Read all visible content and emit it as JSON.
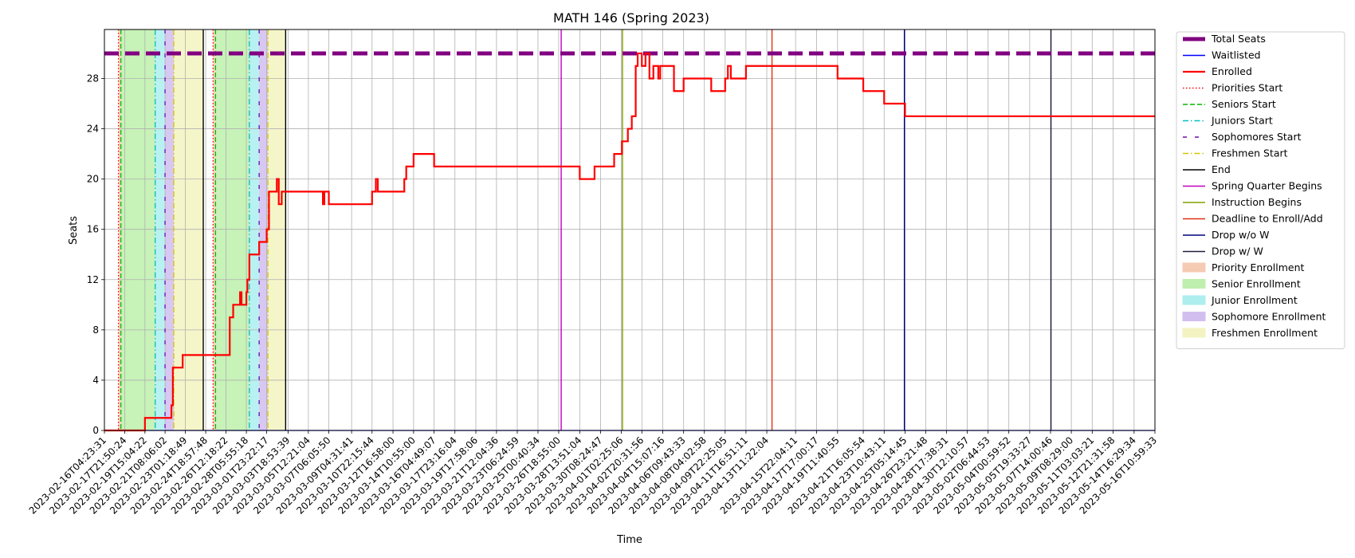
{
  "chart_data": {
    "type": "line",
    "title": "MATH 146 (Spring 2023)",
    "xlabel": "Time",
    "ylabel": "Seats",
    "ylim": [
      0,
      30
    ],
    "yticks": [
      0,
      4,
      8,
      12,
      16,
      20,
      24,
      28
    ],
    "grid": true,
    "legend_position": "outside-right",
    "x_start": "2023-02-16T04:23:31",
    "x_end": "2023-05-16T10:59:33",
    "x_tick_labels": [
      "2023-02-16T04:23:31",
      "2023-02-17T21:50:24",
      "2023-02-19T15:04:22",
      "2023-02-21T08:06:02",
      "2023-02-23T01:18:49",
      "2023-02-24T18:57:48",
      "2023-02-26T12:18:22",
      "2023-02-28T05:55:18",
      "2023-03-01T23:22:17",
      "2023-03-03T18:53:39",
      "2023-03-05T12:21:04",
      "2023-03-07T06:05:50",
      "2023-03-09T04:31:41",
      "2023-03-10T22:15:44",
      "2023-03-12T16:58:00",
      "2023-03-14T10:55:00",
      "2023-03-16T04:49:07",
      "2023-03-17T23:16:04",
      "2023-03-19T17:58:06",
      "2023-03-21T12:04:36",
      "2023-03-23T06:24:59",
      "2023-03-25T00:40:34",
      "2023-03-26T18:55:00",
      "2023-03-28T13:51:04",
      "2023-03-30T08:24:47",
      "2023-04-01T02:25:06",
      "2023-04-02T20:31:56",
      "2023-04-04T15:07:16",
      "2023-04-06T09:43:33",
      "2023-04-08T04:02:58",
      "2023-04-09T22:25:05",
      "2023-04-11T16:51:11",
      "2023-04-13T11:22:04",
      "2023-04-15T22:04:11",
      "2023-04-17T17:00:17",
      "2023-04-19T11:40:55",
      "2023-04-21T16:05:54",
      "2023-04-23T10:43:11",
      "2023-04-25T05:14:45",
      "2023-04-26T23:21:48",
      "2023-04-28T17:38:31",
      "2023-04-30T12:10:57",
      "2023-05-02T06:44:53",
      "2023-05-04T00:59:52",
      "2023-05-05T19:33:27",
      "2023-05-07T14:00:46",
      "2023-05-09T08:29:00",
      "2023-05-11T03:03:21",
      "2023-05-12T21:31:58",
      "2023-05-14T16:29:34",
      "2023-05-16T10:59:33"
    ],
    "series": [
      {
        "name": "Total Seats",
        "color": "#800080",
        "style": "dashed",
        "points": [
          [
            "2023-02-16T04:23:31",
            30
          ],
          [
            "2023-05-16T10:59:33",
            30
          ]
        ]
      },
      {
        "name": "Waitlisted",
        "color": "#0000ff",
        "style": "solid",
        "points": [
          [
            "2023-02-16T04:23:31",
            0
          ],
          [
            "2023-05-16T10:59:33",
            0
          ]
        ]
      },
      {
        "name": "Enrolled",
        "color": "#ff0000",
        "style": "step",
        "points": [
          [
            "2023-02-16T04:23:31",
            0
          ],
          [
            "2023-02-19T15:04:22",
            1
          ],
          [
            "2023-02-21T08:06:02",
            1
          ],
          [
            "2023-02-21T21:00:00",
            2
          ],
          [
            "2023-02-22T00:00:00",
            5
          ],
          [
            "2023-02-22T20:00:00",
            6
          ],
          [
            "2023-02-26T12:18:22",
            6
          ],
          [
            "2023-02-26T20:00:00",
            9
          ],
          [
            "2023-02-27T03:00:00",
            10
          ],
          [
            "2023-02-27T17:00:00",
            11
          ],
          [
            "2023-02-27T20:00:00",
            10
          ],
          [
            "2023-02-28T05:55:18",
            11
          ],
          [
            "2023-02-28T08:00:00",
            12
          ],
          [
            "2023-02-28T12:00:00",
            14
          ],
          [
            "2023-03-01T08:00:00",
            15
          ],
          [
            "2023-03-01T23:22:17",
            16
          ],
          [
            "2023-03-02T04:00:00",
            19
          ],
          [
            "2023-03-02T20:00:00",
            20
          ],
          [
            "2023-03-03T00:00:00",
            18
          ],
          [
            "2023-03-03T06:00:00",
            19
          ],
          [
            "2023-03-06T18:00:00",
            18
          ],
          [
            "2023-03-06T21:00:00",
            19
          ],
          [
            "2023-03-07T06:05:50",
            18
          ],
          [
            "2023-03-10T22:15:44",
            19
          ],
          [
            "2023-03-11T06:00:00",
            20
          ],
          [
            "2023-03-11T10:00:00",
            19
          ],
          [
            "2023-03-13T16:00:00",
            20
          ],
          [
            "2023-03-13T20:00:00",
            21
          ],
          [
            "2023-03-14T10:55:00",
            22
          ],
          [
            "2023-03-16T04:49:07",
            21
          ],
          [
            "2023-03-28T13:51:04",
            20
          ],
          [
            "2023-03-29T20:00:00",
            21
          ],
          [
            "2023-03-31T12:00:00",
            22
          ],
          [
            "2023-04-01T04:00:00",
            23
          ],
          [
            "2023-04-01T16:00:00",
            24
          ],
          [
            "2023-04-02T00:00:00",
            25
          ],
          [
            "2023-04-02T08:00:00",
            29
          ],
          [
            "2023-04-02T12:00:00",
            30
          ],
          [
            "2023-04-02T20:31:56",
            29
          ],
          [
            "2023-04-03T04:00:00",
            30
          ],
          [
            "2023-04-03T12:00:00",
            28
          ],
          [
            "2023-04-03T20:00:00",
            29
          ],
          [
            "2023-04-04T06:00:00",
            28
          ],
          [
            "2023-04-04T10:00:00",
            29
          ],
          [
            "2023-04-05T14:00:00",
            27
          ],
          [
            "2023-04-06T09:43:33",
            28
          ],
          [
            "2023-04-08T18:00:00",
            27
          ],
          [
            "2023-04-09T22:25:05",
            28
          ],
          [
            "2023-04-10T04:00:00",
            29
          ],
          [
            "2023-04-10T10:00:00",
            28
          ],
          [
            "2023-04-11T16:51:11",
            29
          ],
          [
            "2023-04-19T11:40:55",
            28
          ],
          [
            "2023-04-21T16:05:54",
            27
          ],
          [
            "2023-04-23T10:43:11",
            26
          ],
          [
            "2023-04-25T05:14:45",
            25
          ],
          [
            "2023-05-16T10:59:33",
            25
          ]
        ]
      }
    ],
    "vertical_markers": [
      {
        "name": "Priorities Start",
        "color": "#ff0000",
        "style": "dotted",
        "x": [
          "2023-02-17T09:00:00",
          "2023-02-25T10:00:00"
        ]
      },
      {
        "name": "Seniors Start",
        "color": "#00bb00",
        "style": "dashed",
        "x": [
          "2023-02-17T14:00:00",
          "2023-02-25T15:00:00"
        ]
      },
      {
        "name": "Juniors Start",
        "color": "#00bfbf",
        "style": "dashdot",
        "x": [
          "2023-02-20T12:00:00",
          "2023-02-28T12:00:00"
        ]
      },
      {
        "name": "Sophomores Start",
        "color": "#6a0dad",
        "style": "loosedot",
        "x": [
          "2023-02-21T08:00:00",
          "2023-03-01T08:00:00"
        ]
      },
      {
        "name": "Freshmen Start",
        "color": "#d4c800",
        "style": "dashdot",
        "x": [
          "2023-02-22T02:00:00",
          "2023-03-02T02:00:00"
        ]
      },
      {
        "name": "End",
        "color": "#000000",
        "style": "solid",
        "x": [
          "2023-02-24T14:00:00",
          "2023-03-03T14:00:00"
        ]
      },
      {
        "name": "Spring Quarter Begins",
        "color": "#c000c0",
        "style": "solid",
        "x": [
          "2023-03-27T00:00:00"
        ]
      },
      {
        "name": "Instruction Begins",
        "color": "#80a000",
        "style": "solid",
        "x": [
          "2023-04-01T05:00:00"
        ]
      },
      {
        "name": "Deadline to Enroll/Add",
        "color": "#e03010",
        "style": "solid",
        "x": [
          "2023-04-13T22:00:00"
        ]
      },
      {
        "name": "Drop w/o W",
        "color": "#000080",
        "style": "solid",
        "x": [
          "2023-04-25T04:00:00"
        ]
      },
      {
        "name": "Drop w/ W",
        "color": "#202040",
        "style": "solid",
        "x": [
          "2023-05-07T15:00:00"
        ]
      }
    ],
    "shaded_regions": [
      {
        "name": "Priority Enrollment",
        "color": "#f4c2a8",
        "ranges": [
          [
            "2023-02-17T09:00:00",
            "2023-02-17T14:00:00"
          ],
          [
            "2023-02-25T10:00:00",
            "2023-02-25T15:00:00"
          ]
        ]
      },
      {
        "name": "Senior Enrollment",
        "color": "#b4eda0",
        "ranges": [
          [
            "2023-02-17T14:00:00",
            "2023-02-20T12:00:00"
          ],
          [
            "2023-02-25T15:00:00",
            "2023-02-28T12:00:00"
          ]
        ]
      },
      {
        "name": "Junior Enrollment",
        "color": "#a0ecec",
        "ranges": [
          [
            "2023-02-20T12:00:00",
            "2023-02-21T08:00:00"
          ],
          [
            "2023-02-28T12:00:00",
            "2023-03-01T08:00:00"
          ]
        ]
      },
      {
        "name": "Sophomore Enrollment",
        "color": "#cbb4ee",
        "ranges": [
          [
            "2023-02-21T08:00:00",
            "2023-02-22T02:00:00"
          ],
          [
            "2023-03-01T08:00:00",
            "2023-03-02T02:00:00"
          ]
        ]
      },
      {
        "name": "Freshmen Enrollment",
        "color": "#f2f2b8",
        "ranges": [
          [
            "2023-02-22T02:00:00",
            "2023-02-24T14:00:00"
          ],
          [
            "2023-03-02T02:00:00",
            "2023-03-03T14:00:00"
          ]
        ]
      }
    ],
    "legend": [
      "Total Seats",
      "Waitlisted",
      "Enrolled",
      "Priorities Start",
      "Seniors Start",
      "Juniors Start",
      "Sophomores Start",
      "Freshmen Start",
      "End",
      "Spring Quarter Begins",
      "Instruction Begins",
      "Deadline to Enroll/Add",
      "Drop w/o W",
      "Drop w/ W",
      "Priority Enrollment",
      "Senior Enrollment",
      "Junior Enrollment",
      "Sophomore Enrollment",
      "Freshmen Enrollment"
    ]
  }
}
